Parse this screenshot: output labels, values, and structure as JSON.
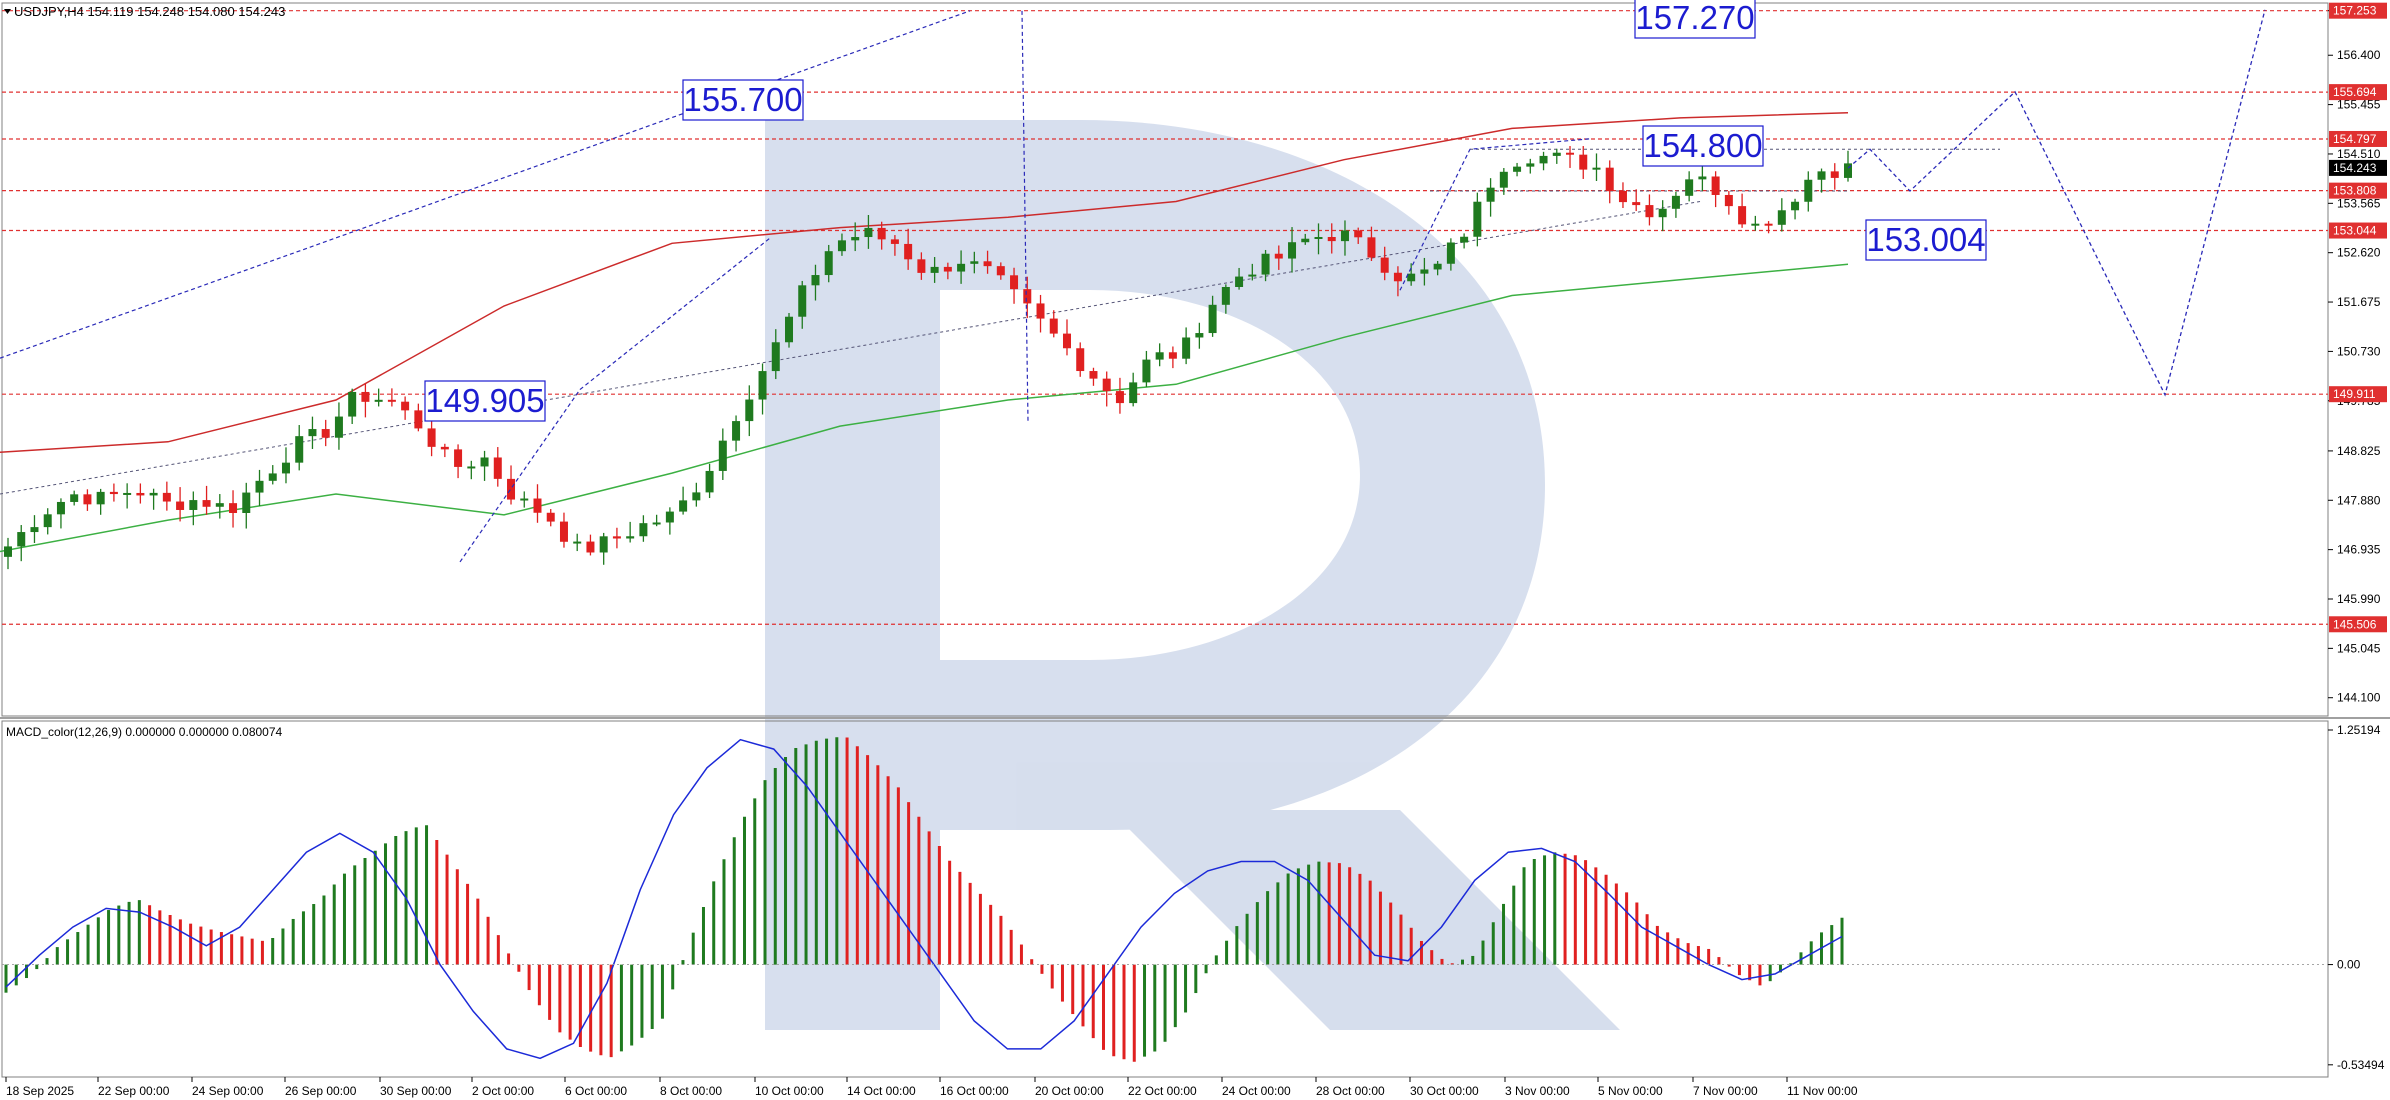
{
  "header": {
    "symbol_line": "USDJPY,H4  154.119 154.248 154.080 154.243",
    "macd_line": "MACD_color(12,26,9) 0.000000 0.000000 0.080074"
  },
  "colors": {
    "bull": "#1f7a1f",
    "bear": "#e02020",
    "level_line": "#e03030",
    "price_tag_bg": "#e03030",
    "current_tag_bg": "#000000",
    "ma_fast": "#6a6a8a",
    "ma_red": "#cc2b2b",
    "ma_green": "#3cb043",
    "signal": "#1c2ad8",
    "forecast": "#2a2ab8",
    "callout_text": "#1c1cd0",
    "watermark": "#c9d4e8"
  },
  "chart_data": [
    {
      "type": "candlestick",
      "title": "USDJPY,H4",
      "y_axis_ticks": [
        "157.253",
        "156.400",
        "155.455",
        "154.510",
        "153.565",
        "152.620",
        "151.675",
        "150.730",
        "149.785",
        "148.825",
        "147.880",
        "146.935",
        "145.990",
        "145.045",
        "144.100"
      ],
      "ylim": [
        143.75,
        157.4
      ],
      "x_tick_labels": [
        "18 Sep 2025",
        "22 Sep 00:00",
        "24 Sep 00:00",
        "26 Sep 00:00",
        "30 Sep 00:00",
        "2 Oct 00:00",
        "6 Oct 00:00",
        "8 Oct 00:00",
        "10 Oct 00:00",
        "14 Oct 00:00",
        "16 Oct 00:00",
        "20 Oct 00:00",
        "22 Oct 00:00",
        "24 Oct 00:00",
        "28 Oct 00:00",
        "30 Oct 00:00",
        "3 Nov 00:00",
        "5 Nov 00:00",
        "7 Nov 00:00",
        "11 Nov 00:00"
      ],
      "price_levels": [
        {
          "value": 157.253,
          "label": "157.253"
        },
        {
          "value": 155.694,
          "label": "155.694"
        },
        {
          "value": 154.797,
          "label": "154.797"
        },
        {
          "value": 153.808,
          "label": "153.808"
        },
        {
          "value": 153.044,
          "label": "153.044"
        },
        {
          "value": 149.911,
          "label": "149.911"
        },
        {
          "value": 145.506,
          "label": "145.506"
        }
      ],
      "current_price": {
        "value": 154.243,
        "label": "154.243"
      },
      "callouts": [
        {
          "text": "155.700",
          "price": 155.7
        },
        {
          "text": "149.905",
          "price": 149.905
        },
        {
          "text": "157.270",
          "price": 157.27
        },
        {
          "text": "154.800",
          "price": 154.8
        },
        {
          "text": "153.004",
          "price": 153.004
        }
      ],
      "ohlc_anchor_closes": [
        147.0,
        147.6,
        148.0,
        147.9,
        148.1,
        147.8,
        147.9,
        147.7,
        148.3,
        148.9,
        149.2,
        149.9,
        149.8,
        149.3,
        148.5,
        148.7,
        147.9,
        147.6,
        146.9,
        147.1,
        147.4,
        147.6,
        148.4,
        149.6,
        150.6,
        151.8,
        152.8,
        153.0,
        152.8,
        152.2,
        152.5,
        152.2,
        151.6,
        151.0,
        150.4,
        149.8,
        150.6,
        150.7,
        151.7,
        152.3,
        152.5,
        152.9,
        153.0,
        152.6,
        152.1,
        152.3,
        153.1,
        154.3,
        154.5,
        154.4,
        154.3,
        153.6,
        153.4,
        154.1,
        153.8,
        153.1,
        153.5,
        154.2,
        154.24
      ],
      "ma_red": [
        148.8,
        149.0,
        149.8,
        151.6,
        152.8,
        153.1,
        153.3,
        153.6,
        154.4,
        155.0,
        155.2,
        155.3
      ],
      "ma_green": [
        146.9,
        147.5,
        148.0,
        147.6,
        148.4,
        149.3,
        149.8,
        150.1,
        151.0,
        151.8,
        152.1,
        152.4
      ],
      "forecast_path": [
        154.24,
        154.6,
        153.8,
        155.7,
        149.9,
        157.27
      ]
    },
    {
      "type": "bar",
      "title": "MACD_color(12,26,9)",
      "y_axis_ticks": [
        "1.25194",
        "0.00",
        "-0.53494"
      ],
      "ylim": [
        -0.6,
        1.3
      ],
      "histogram": [
        -0.15,
        -0.05,
        0.1,
        0.2,
        0.3,
        0.35,
        0.28,
        0.22,
        0.18,
        0.15,
        0.12,
        0.25,
        0.35,
        0.5,
        0.6,
        0.7,
        0.75,
        0.55,
        0.35,
        0.1,
        -0.15,
        -0.35,
        -0.45,
        -0.5,
        -0.42,
        -0.3,
        0.1,
        0.45,
        0.75,
        1.0,
        1.15,
        1.2,
        1.22,
        1.1,
        0.95,
        0.75,
        0.55,
        0.4,
        0.25,
        0.05,
        -0.15,
        -0.32,
        -0.48,
        -0.52,
        -0.45,
        -0.25,
        0.02,
        0.22,
        0.38,
        0.5,
        0.55,
        0.54,
        0.45,
        0.3,
        0.12,
        0.0,
        0.05,
        0.3,
        0.55,
        0.6,
        0.58,
        0.48,
        0.36,
        0.2,
        0.12,
        0.08,
        -0.05,
        -0.12,
        0.0,
        0.15,
        0.25
      ],
      "signal": [
        -0.12,
        0.05,
        0.2,
        0.3,
        0.28,
        0.2,
        0.1,
        0.2,
        0.4,
        0.6,
        0.7,
        0.6,
        0.35,
        0.0,
        -0.25,
        -0.45,
        -0.5,
        -0.42,
        -0.1,
        0.4,
        0.8,
        1.05,
        1.2,
        1.15,
        0.95,
        0.7,
        0.45,
        0.2,
        -0.05,
        -0.3,
        -0.45,
        -0.45,
        -0.3,
        -0.05,
        0.2,
        0.38,
        0.5,
        0.55,
        0.55,
        0.45,
        0.25,
        0.05,
        0.02,
        0.2,
        0.45,
        0.6,
        0.62,
        0.55,
        0.38,
        0.2,
        0.1,
        0.0,
        -0.08,
        -0.05,
        0.05,
        0.15
      ]
    }
  ]
}
